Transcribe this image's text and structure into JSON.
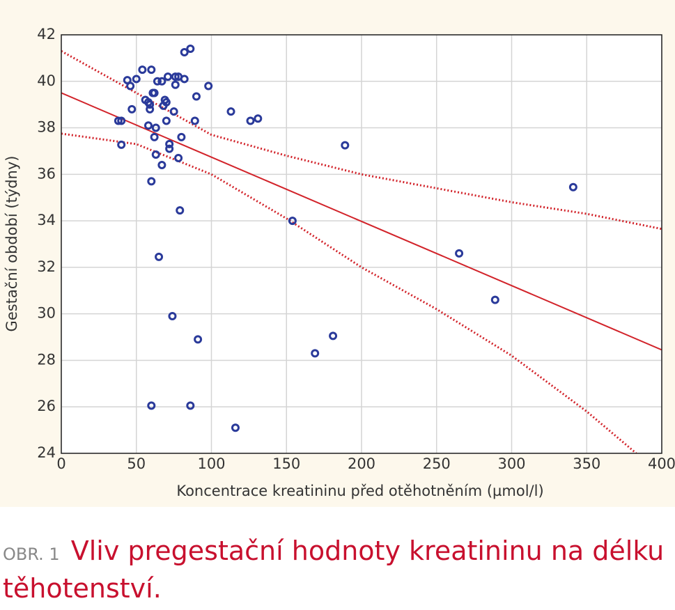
{
  "chart_data": {
    "type": "scatter",
    "xlabel": "Koncentrace kreatininu před otěhotněním (µmol/l)",
    "ylabel": "Gestační období (týdny)",
    "xlim": [
      0,
      400
    ],
    "xticks": [
      0,
      50,
      100,
      150,
      200,
      250,
      300,
      350,
      400
    ],
    "ylim": [
      24,
      42
    ],
    "yticks": [
      24,
      26,
      28,
      30,
      32,
      34,
      36,
      38,
      40,
      42
    ],
    "grid": true,
    "points": {
      "color": "#2a3a9a",
      "x": [
        38,
        40,
        40,
        44,
        46,
        50,
        47,
        54,
        56,
        58,
        59,
        58,
        60,
        61,
        62,
        59,
        62,
        63,
        64,
        63,
        60,
        67,
        68,
        69,
        70,
        67,
        70,
        71,
        72,
        72,
        75,
        76,
        78,
        76,
        78,
        80,
        82,
        82,
        86,
        90,
        89,
        98,
        113,
        126,
        131,
        79,
        65,
        74,
        91,
        60,
        86,
        116,
        154,
        169,
        181,
        189,
        265,
        289,
        341
      ],
      "values": [
        38.3,
        38.3,
        37.27,
        40.05,
        39.8,
        40.1,
        38.8,
        40.5,
        39.2,
        39.1,
        38.8,
        38.1,
        40.5,
        39.5,
        39.5,
        39,
        37.6,
        38,
        40,
        36.85,
        35.7,
        40,
        38.95,
        39.2,
        39.1,
        36.4,
        38.3,
        40.2,
        37.3,
        37.1,
        38.7,
        40.2,
        40.2,
        39.85,
        36.7,
        37.6,
        40.1,
        41.25,
        41.4,
        39.35,
        38.3,
        39.8,
        38.7,
        38.3,
        38.4,
        34.45,
        32.45,
        29.9,
        28.9,
        26.05,
        26.05,
        25.1,
        34,
        28.3,
        29.05,
        37.25,
        32.6,
        30.6,
        35.45
      ]
    },
    "fit": {
      "color": "#d2232a",
      "x": [
        0,
        400
      ],
      "values": [
        39.5,
        28.45
      ]
    },
    "bands": [
      {
        "color": "#d2232a",
        "x": [
          0,
          50,
          100,
          150,
          200,
          250,
          300,
          350,
          400
        ],
        "values": [
          41.3,
          39.5,
          37.7,
          36.8,
          36.0,
          35.4,
          34.8,
          34.3,
          33.65
        ]
      },
      {
        "color": "#d2232a",
        "x": [
          0,
          50,
          100,
          150,
          200,
          250,
          300,
          350,
          383
        ],
        "values": [
          37.75,
          37.3,
          36.0,
          34.1,
          32.0,
          30.2,
          28.2,
          25.8,
          24.0
        ]
      }
    ],
    "caption": {
      "label": "OBR. 1",
      "text": "Vliv pregestační hodnoty kreatininu na délku těhotenství."
    }
  }
}
